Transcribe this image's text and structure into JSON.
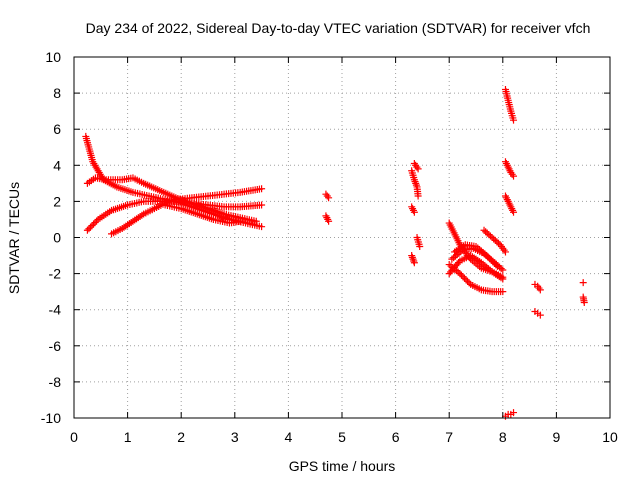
{
  "chart_data": {
    "type": "scatter",
    "title": "Day 234 of 2022, Sidereal Day-to-day VTEC variation (SDTVAR) for receiver vfch",
    "xlabel": "GPS time / hours",
    "ylabel": "SDTVAR / TECUs",
    "xlim": [
      0,
      10
    ],
    "ylim": [
      -10,
      10
    ],
    "x_ticks": [
      0,
      1,
      2,
      3,
      4,
      5,
      6,
      7,
      8,
      9,
      10
    ],
    "y_ticks": [
      -10,
      -8,
      -6,
      -4,
      -2,
      0,
      2,
      4,
      6,
      8,
      10
    ],
    "grid": true,
    "marker": "+",
    "color": "#ff0000",
    "segments": [
      {
        "name": "track-1",
        "x": [
          0.22,
          0.35,
          0.55,
          0.8,
          1.1,
          1.4,
          1.7,
          2.0,
          2.3,
          2.6,
          2.9,
          3.2,
          3.5
        ],
        "y": [
          5.6,
          4.2,
          3.2,
          2.8,
          2.5,
          2.3,
          2.1,
          1.9,
          1.6,
          1.3,
          1.0,
          0.8,
          0.6
        ]
      },
      {
        "name": "track-2",
        "x": [
          0.25,
          0.4,
          0.6,
          0.9,
          1.1,
          1.3,
          1.6,
          1.9,
          2.2,
          2.5,
          2.8,
          3.1,
          3.4
        ],
        "y": [
          3.0,
          3.3,
          3.2,
          3.2,
          3.3,
          3.0,
          2.6,
          2.2,
          1.9,
          1.6,
          1.3,
          1.1,
          0.9
        ]
      },
      {
        "name": "track-3",
        "x": [
          0.25,
          0.45,
          0.7,
          1.0,
          1.3,
          1.6,
          1.9,
          2.2,
          2.5,
          2.8,
          3.1,
          3.5
        ],
        "y": [
          0.4,
          1.0,
          1.5,
          1.8,
          2.0,
          2.0,
          2.0,
          1.9,
          1.8,
          1.7,
          1.7,
          1.8
        ]
      },
      {
        "name": "track-4",
        "x": [
          0.7,
          0.9,
          1.1,
          1.3,
          1.5,
          1.7,
          1.9,
          2.2,
          2.5,
          2.8,
          3.1,
          3.5
        ],
        "y": [
          0.2,
          0.5,
          0.9,
          1.3,
          1.6,
          1.9,
          2.1,
          2.2,
          2.3,
          2.4,
          2.5,
          2.7
        ]
      },
      {
        "name": "track-5",
        "x": [
          1.7,
          2.0,
          2.3,
          2.6,
          2.9,
          3.1
        ],
        "y": [
          1.8,
          1.6,
          1.3,
          1.0,
          0.8,
          0.9
        ]
      },
      {
        "name": "track-6",
        "x": [
          4.7,
          4.75
        ],
        "y": [
          2.4,
          2.2
        ]
      },
      {
        "name": "track-7",
        "x": [
          4.7,
          4.75
        ],
        "y": [
          1.2,
          0.9
        ]
      },
      {
        "name": "track-8",
        "x": [
          6.3,
          6.35,
          6.4,
          6.42
        ],
        "y": [
          3.7,
          3.2,
          2.8,
          2.3
        ]
      },
      {
        "name": "track-9",
        "x": [
          6.35,
          6.42
        ],
        "y": [
          4.1,
          3.8
        ]
      },
      {
        "name": "track-10",
        "x": [
          6.3,
          6.35
        ],
        "y": [
          1.7,
          1.4
        ]
      },
      {
        "name": "track-11",
        "x": [
          6.3,
          6.35
        ],
        "y": [
          -1.0,
          -1.4
        ]
      },
      {
        "name": "track-12",
        "x": [
          6.4,
          6.45
        ],
        "y": [
          0.0,
          -0.5
        ]
      },
      {
        "name": "track-13",
        "x": [
          7.0,
          7.2,
          7.4,
          7.6,
          7.8,
          8.0
        ],
        "y": [
          0.8,
          -0.4,
          -1.2,
          -1.7,
          -1.9,
          -2.2
        ]
      },
      {
        "name": "track-14",
        "x": [
          7.0,
          7.2,
          7.4,
          7.6,
          7.8,
          8.0
        ],
        "y": [
          -1.5,
          -2.0,
          -2.6,
          -2.9,
          -3.0,
          -3.0
        ]
      },
      {
        "name": "track-15",
        "x": [
          7.0,
          7.2,
          7.4,
          7.6,
          7.8,
          8.0
        ],
        "y": [
          -2.0,
          -1.3,
          -1.0,
          -1.4,
          -1.9,
          -2.3
        ]
      },
      {
        "name": "track-16",
        "x": [
          7.05,
          7.25,
          7.45,
          7.65,
          7.85,
          8.0
        ],
        "y": [
          -1.2,
          -0.7,
          -0.6,
          -0.9,
          -1.4,
          -1.8
        ]
      },
      {
        "name": "track-17",
        "x": [
          7.1,
          7.3,
          7.5,
          7.7,
          7.9
        ],
        "y": [
          -0.8,
          -0.4,
          -0.5,
          -1.0,
          -1.6
        ]
      },
      {
        "name": "track-18",
        "x": [
          7.65,
          7.8,
          7.95,
          8.05
        ],
        "y": [
          0.4,
          0.0,
          -0.4,
          -0.8
        ]
      },
      {
        "name": "track-19",
        "x": [
          8.05,
          8.1,
          8.15,
          8.2
        ],
        "y": [
          8.2,
          7.6,
          7.0,
          6.5
        ]
      },
      {
        "name": "track-20",
        "x": [
          8.05,
          8.1,
          8.15,
          8.2
        ],
        "y": [
          4.2,
          3.9,
          3.6,
          3.4
        ]
      },
      {
        "name": "track-21",
        "x": [
          8.05,
          8.1,
          8.15,
          8.2
        ],
        "y": [
          2.3,
          2.0,
          1.7,
          1.4
        ]
      },
      {
        "name": "track-22",
        "x": [
          8.05,
          8.1,
          8.15,
          8.2
        ],
        "y": [
          -9.9,
          -9.8,
          -9.8,
          -9.7
        ]
      },
      {
        "name": "track-23",
        "x": [
          8.6,
          8.65,
          8.7
        ],
        "y": [
          -2.6,
          -2.7,
          -2.9
        ]
      },
      {
        "name": "track-24",
        "x": [
          8.6,
          8.65,
          8.7
        ],
        "y": [
          -4.1,
          -4.2,
          -4.3
        ]
      },
      {
        "name": "track-25",
        "x": [
          9.5
        ],
        "y": [
          -2.5
        ]
      },
      {
        "name": "track-26",
        "x": [
          9.5,
          9.52
        ],
        "y": [
          -3.3,
          -3.6
        ]
      }
    ]
  }
}
